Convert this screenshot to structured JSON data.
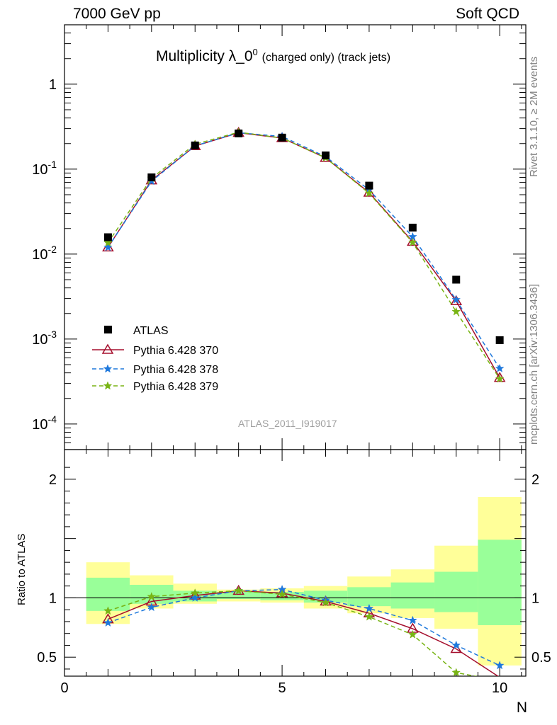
{
  "header": {
    "left": "7000 GeV pp",
    "right": "Soft QCD"
  },
  "title": {
    "main": "Multiplicity λ_0",
    "sup": "0",
    "sub": "(charged only) (track jets)"
  },
  "side": {
    "rivet": "Rivet 3.1.10, ≥ 2M events",
    "mcplots": "mcplots.cern.ch [arXiv:1306.3436]"
  },
  "analysis": "ATLAS_2011_I919017",
  "ratio_ylabel": "Ratio to ATLAS",
  "colors": {
    "atlas": "#000000",
    "p370": "#a50f2d",
    "p378": "#1e78dc",
    "p379": "#78b414",
    "band_yellow": "#ffff99",
    "band_green": "#99ff99"
  },
  "chart_data": [
    {
      "type": "scatter",
      "xlabel": "N",
      "ylabel": "",
      "xlim": [
        0,
        10.6
      ],
      "ylim": [
        5e-05,
        5
      ],
      "yscale": "log",
      "xticks": [
        "0",
        "5",
        "10"
      ],
      "yticks": [
        "10^-4",
        "10^-3",
        "10^-2",
        "10^-1",
        "1"
      ],
      "legend_position": "lower-left",
      "x": [
        1,
        2,
        3,
        4,
        5,
        6,
        7,
        8,
        9,
        10
      ],
      "series": [
        {
          "name": "ATLAS",
          "style": "square",
          "values": [
            0.0158,
            0.08,
            0.19,
            0.263,
            0.235,
            0.145,
            0.064,
            0.0205,
            0.005,
            0.00097
          ]
        },
        {
          "name": "Pythia 6.428 370",
          "style": "triangle-solid",
          "values": [
            0.012,
            0.074,
            0.187,
            0.268,
            0.232,
            0.136,
            0.053,
            0.014,
            0.0028,
            0.00035
          ]
        },
        {
          "name": "Pythia 6.428 378",
          "style": "star-dashed",
          "values": [
            0.012,
            0.072,
            0.188,
            0.268,
            0.242,
            0.14,
            0.057,
            0.016,
            0.0029,
            0.00045
          ]
        },
        {
          "name": "Pythia 6.428 379",
          "style": "star-dashed",
          "values": [
            0.0136,
            0.078,
            0.196,
            0.272,
            0.232,
            0.136,
            0.052,
            0.0137,
            0.0021,
            0.00034
          ]
        }
      ]
    },
    {
      "type": "line",
      "xlabel": "N",
      "ylabel": "Ratio to ATLAS",
      "xlim": [
        0,
        10.6
      ],
      "ylim": [
        0.34,
        2.25
      ],
      "yticks": [
        "0.5",
        "1",
        "2"
      ],
      "x": [
        1,
        2,
        3,
        4,
        5,
        6,
        7,
        8,
        9,
        10
      ],
      "bands": {
        "edges": [
          0.5,
          1.5,
          2.5,
          3.5,
          4.5,
          5.5,
          6.5,
          7.5,
          8.5,
          9.5,
          10.5
        ],
        "yellow_lo": [
          0.78,
          0.91,
          0.95,
          0.97,
          0.96,
          0.91,
          0.87,
          0.83,
          0.74,
          0.43
        ],
        "yellow_hi": [
          1.3,
          1.19,
          1.12,
          1.07,
          1.08,
          1.1,
          1.18,
          1.24,
          1.44,
          1.85
        ],
        "green_lo": [
          0.89,
          0.95,
          0.97,
          0.99,
          0.98,
          0.96,
          0.93,
          0.91,
          0.88,
          0.77
        ],
        "green_hi": [
          1.17,
          1.11,
          1.06,
          1.05,
          1.05,
          1.06,
          1.09,
          1.13,
          1.22,
          1.49
        ]
      },
      "series": [
        {
          "name": "Pythia 6.428 370",
          "values": [
            0.82,
            0.97,
            1.02,
            1.06,
            1.04,
            0.97,
            0.87,
            0.74,
            0.57,
            0.33
          ]
        },
        {
          "name": "Pythia 6.428 378",
          "values": [
            0.79,
            0.92,
            1.0,
            1.06,
            1.07,
            0.98,
            0.91,
            0.81,
            0.6,
            0.43
          ]
        },
        {
          "name": "Pythia 6.428 379",
          "values": [
            0.89,
            1.01,
            1.04,
            1.06,
            1.03,
            0.96,
            0.84,
            0.69,
            0.37,
            0.3
          ]
        }
      ]
    }
  ]
}
